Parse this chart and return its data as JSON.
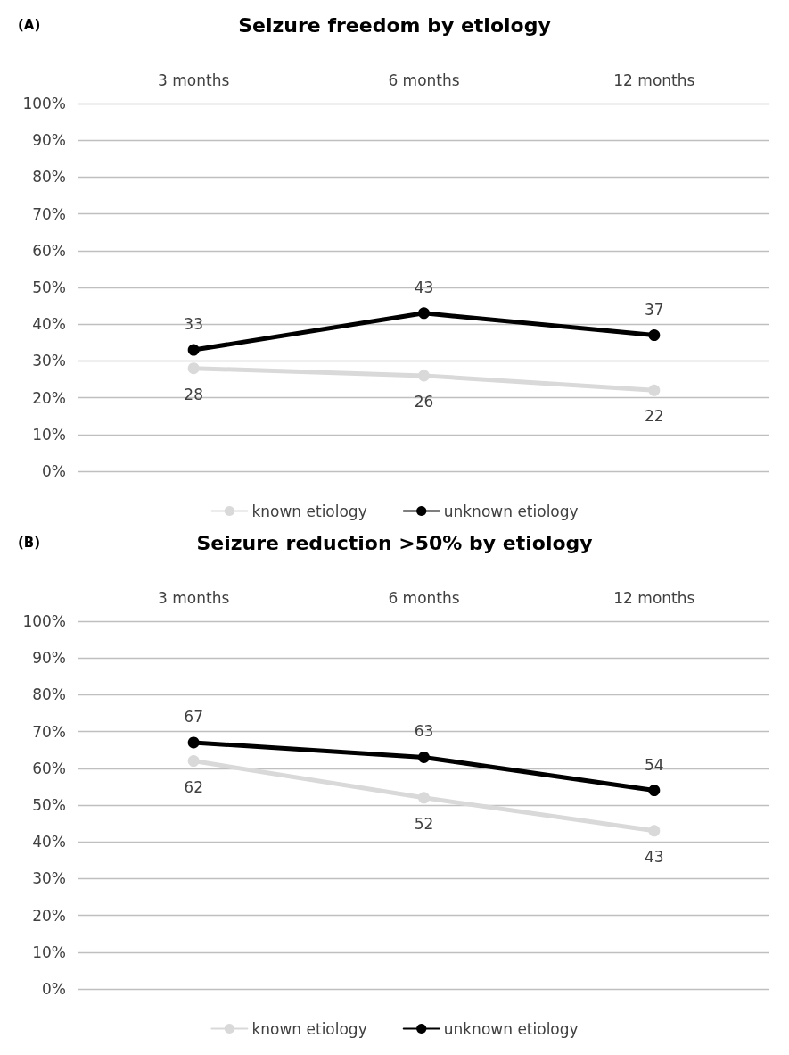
{
  "chart_data": [
    {
      "type": "line",
      "title": "Seizure freedom by etiology",
      "annotations": [
        "(A)"
      ],
      "categories": [
        "3 months",
        "6 months",
        "12 months"
      ],
      "series": [
        {
          "name": "known etiology",
          "color": "#d9d9d9",
          "values": [
            28,
            26,
            22
          ]
        },
        {
          "name": "unknown etiology",
          "color": "#000000",
          "values": [
            33,
            43,
            37
          ]
        }
      ],
      "ylim": [
        0,
        100
      ],
      "yticks": [
        {
          "value": 0,
          "label": "0%"
        },
        {
          "value": 10,
          "label": "10%"
        },
        {
          "value": 20,
          "label": "20%"
        },
        {
          "value": 30,
          "label": "30%"
        },
        {
          "value": 40,
          "label": "40%"
        },
        {
          "value": 50,
          "label": "50%"
        },
        {
          "value": 60,
          "label": "60%"
        },
        {
          "value": 70,
          "label": "70%"
        },
        {
          "value": 80,
          "label": "80%"
        },
        {
          "value": 90,
          "label": "90%"
        },
        {
          "value": 100,
          "label": "100%"
        }
      ],
      "grid": "y",
      "legend": "bottom",
      "marker": "circle",
      "line_style": "solid",
      "data_labels": true
    },
    {
      "type": "line",
      "title": "Seizure reduction >50% by etiology",
      "annotations": [
        "(B)"
      ],
      "categories": [
        "3 months",
        "6 months",
        "12 months"
      ],
      "series": [
        {
          "name": "known etiology",
          "color": "#d9d9d9",
          "values": [
            62,
            52,
            43
          ]
        },
        {
          "name": "unknown etiology",
          "color": "#000000",
          "values": [
            67,
            63,
            54
          ]
        }
      ],
      "ylim": [
        0,
        100
      ],
      "yticks": [
        {
          "value": 0,
          "label": "0%"
        },
        {
          "value": 10,
          "label": "10%"
        },
        {
          "value": 20,
          "label": "20%"
        },
        {
          "value": 30,
          "label": "30%"
        },
        {
          "value": 40,
          "label": "40%"
        },
        {
          "value": 50,
          "label": "50%"
        },
        {
          "value": 60,
          "label": "60%"
        },
        {
          "value": 70,
          "label": "70%"
        },
        {
          "value": 80,
          "label": "80%"
        },
        {
          "value": 90,
          "label": "90%"
        },
        {
          "value": 100,
          "label": "100%"
        }
      ],
      "grid": "y",
      "legend": "bottom",
      "marker": "circle",
      "line_style": "solid",
      "data_labels": true
    }
  ]
}
